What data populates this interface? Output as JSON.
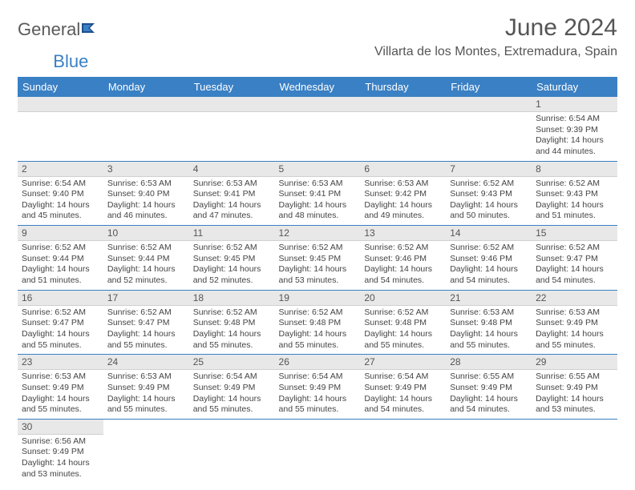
{
  "brand": {
    "part1": "General",
    "part2": "Blue"
  },
  "title": "June 2024",
  "location": "Villarta de los Montes, Extremadura, Spain",
  "colors": {
    "header_bg": "#3a80c4",
    "header_text": "#ffffff",
    "daynum_bg": "#e8e8e8",
    "row_border": "#3a80c4",
    "body_text": "#444444",
    "title_text": "#555555"
  },
  "fonts": {
    "title_size": 30,
    "location_size": 16,
    "dayhead_size": 13,
    "daynum_size": 12,
    "body_size": 10.5
  },
  "day_headers": [
    "Sunday",
    "Monday",
    "Tuesday",
    "Wednesday",
    "Thursday",
    "Friday",
    "Saturday"
  ],
  "weeks": [
    [
      null,
      null,
      null,
      null,
      null,
      null,
      {
        "n": "1",
        "sunrise": "Sunrise: 6:54 AM",
        "sunset": "Sunset: 9:39 PM",
        "daylight": "Daylight: 14 hours and 44 minutes."
      }
    ],
    [
      {
        "n": "2",
        "sunrise": "Sunrise: 6:54 AM",
        "sunset": "Sunset: 9:40 PM",
        "daylight": "Daylight: 14 hours and 45 minutes."
      },
      {
        "n": "3",
        "sunrise": "Sunrise: 6:53 AM",
        "sunset": "Sunset: 9:40 PM",
        "daylight": "Daylight: 14 hours and 46 minutes."
      },
      {
        "n": "4",
        "sunrise": "Sunrise: 6:53 AM",
        "sunset": "Sunset: 9:41 PM",
        "daylight": "Daylight: 14 hours and 47 minutes."
      },
      {
        "n": "5",
        "sunrise": "Sunrise: 6:53 AM",
        "sunset": "Sunset: 9:41 PM",
        "daylight": "Daylight: 14 hours and 48 minutes."
      },
      {
        "n": "6",
        "sunrise": "Sunrise: 6:53 AM",
        "sunset": "Sunset: 9:42 PM",
        "daylight": "Daylight: 14 hours and 49 minutes."
      },
      {
        "n": "7",
        "sunrise": "Sunrise: 6:52 AM",
        "sunset": "Sunset: 9:43 PM",
        "daylight": "Daylight: 14 hours and 50 minutes."
      },
      {
        "n": "8",
        "sunrise": "Sunrise: 6:52 AM",
        "sunset": "Sunset: 9:43 PM",
        "daylight": "Daylight: 14 hours and 51 minutes."
      }
    ],
    [
      {
        "n": "9",
        "sunrise": "Sunrise: 6:52 AM",
        "sunset": "Sunset: 9:44 PM",
        "daylight": "Daylight: 14 hours and 51 minutes."
      },
      {
        "n": "10",
        "sunrise": "Sunrise: 6:52 AM",
        "sunset": "Sunset: 9:44 PM",
        "daylight": "Daylight: 14 hours and 52 minutes."
      },
      {
        "n": "11",
        "sunrise": "Sunrise: 6:52 AM",
        "sunset": "Sunset: 9:45 PM",
        "daylight": "Daylight: 14 hours and 52 minutes."
      },
      {
        "n": "12",
        "sunrise": "Sunrise: 6:52 AM",
        "sunset": "Sunset: 9:45 PM",
        "daylight": "Daylight: 14 hours and 53 minutes."
      },
      {
        "n": "13",
        "sunrise": "Sunrise: 6:52 AM",
        "sunset": "Sunset: 9:46 PM",
        "daylight": "Daylight: 14 hours and 54 minutes."
      },
      {
        "n": "14",
        "sunrise": "Sunrise: 6:52 AM",
        "sunset": "Sunset: 9:46 PM",
        "daylight": "Daylight: 14 hours and 54 minutes."
      },
      {
        "n": "15",
        "sunrise": "Sunrise: 6:52 AM",
        "sunset": "Sunset: 9:47 PM",
        "daylight": "Daylight: 14 hours and 54 minutes."
      }
    ],
    [
      {
        "n": "16",
        "sunrise": "Sunrise: 6:52 AM",
        "sunset": "Sunset: 9:47 PM",
        "daylight": "Daylight: 14 hours and 55 minutes."
      },
      {
        "n": "17",
        "sunrise": "Sunrise: 6:52 AM",
        "sunset": "Sunset: 9:47 PM",
        "daylight": "Daylight: 14 hours and 55 minutes."
      },
      {
        "n": "18",
        "sunrise": "Sunrise: 6:52 AM",
        "sunset": "Sunset: 9:48 PM",
        "daylight": "Daylight: 14 hours and 55 minutes."
      },
      {
        "n": "19",
        "sunrise": "Sunrise: 6:52 AM",
        "sunset": "Sunset: 9:48 PM",
        "daylight": "Daylight: 14 hours and 55 minutes."
      },
      {
        "n": "20",
        "sunrise": "Sunrise: 6:52 AM",
        "sunset": "Sunset: 9:48 PM",
        "daylight": "Daylight: 14 hours and 55 minutes."
      },
      {
        "n": "21",
        "sunrise": "Sunrise: 6:53 AM",
        "sunset": "Sunset: 9:48 PM",
        "daylight": "Daylight: 14 hours and 55 minutes."
      },
      {
        "n": "22",
        "sunrise": "Sunrise: 6:53 AM",
        "sunset": "Sunset: 9:49 PM",
        "daylight": "Daylight: 14 hours and 55 minutes."
      }
    ],
    [
      {
        "n": "23",
        "sunrise": "Sunrise: 6:53 AM",
        "sunset": "Sunset: 9:49 PM",
        "daylight": "Daylight: 14 hours and 55 minutes."
      },
      {
        "n": "24",
        "sunrise": "Sunrise: 6:53 AM",
        "sunset": "Sunset: 9:49 PM",
        "daylight": "Daylight: 14 hours and 55 minutes."
      },
      {
        "n": "25",
        "sunrise": "Sunrise: 6:54 AM",
        "sunset": "Sunset: 9:49 PM",
        "daylight": "Daylight: 14 hours and 55 minutes."
      },
      {
        "n": "26",
        "sunrise": "Sunrise: 6:54 AM",
        "sunset": "Sunset: 9:49 PM",
        "daylight": "Daylight: 14 hours and 55 minutes."
      },
      {
        "n": "27",
        "sunrise": "Sunrise: 6:54 AM",
        "sunset": "Sunset: 9:49 PM",
        "daylight": "Daylight: 14 hours and 54 minutes."
      },
      {
        "n": "28",
        "sunrise": "Sunrise: 6:55 AM",
        "sunset": "Sunset: 9:49 PM",
        "daylight": "Daylight: 14 hours and 54 minutes."
      },
      {
        "n": "29",
        "sunrise": "Sunrise: 6:55 AM",
        "sunset": "Sunset: 9:49 PM",
        "daylight": "Daylight: 14 hours and 53 minutes."
      }
    ],
    [
      {
        "n": "30",
        "sunrise": "Sunrise: 6:56 AM",
        "sunset": "Sunset: 9:49 PM",
        "daylight": "Daylight: 14 hours and 53 minutes."
      },
      null,
      null,
      null,
      null,
      null,
      null
    ]
  ]
}
